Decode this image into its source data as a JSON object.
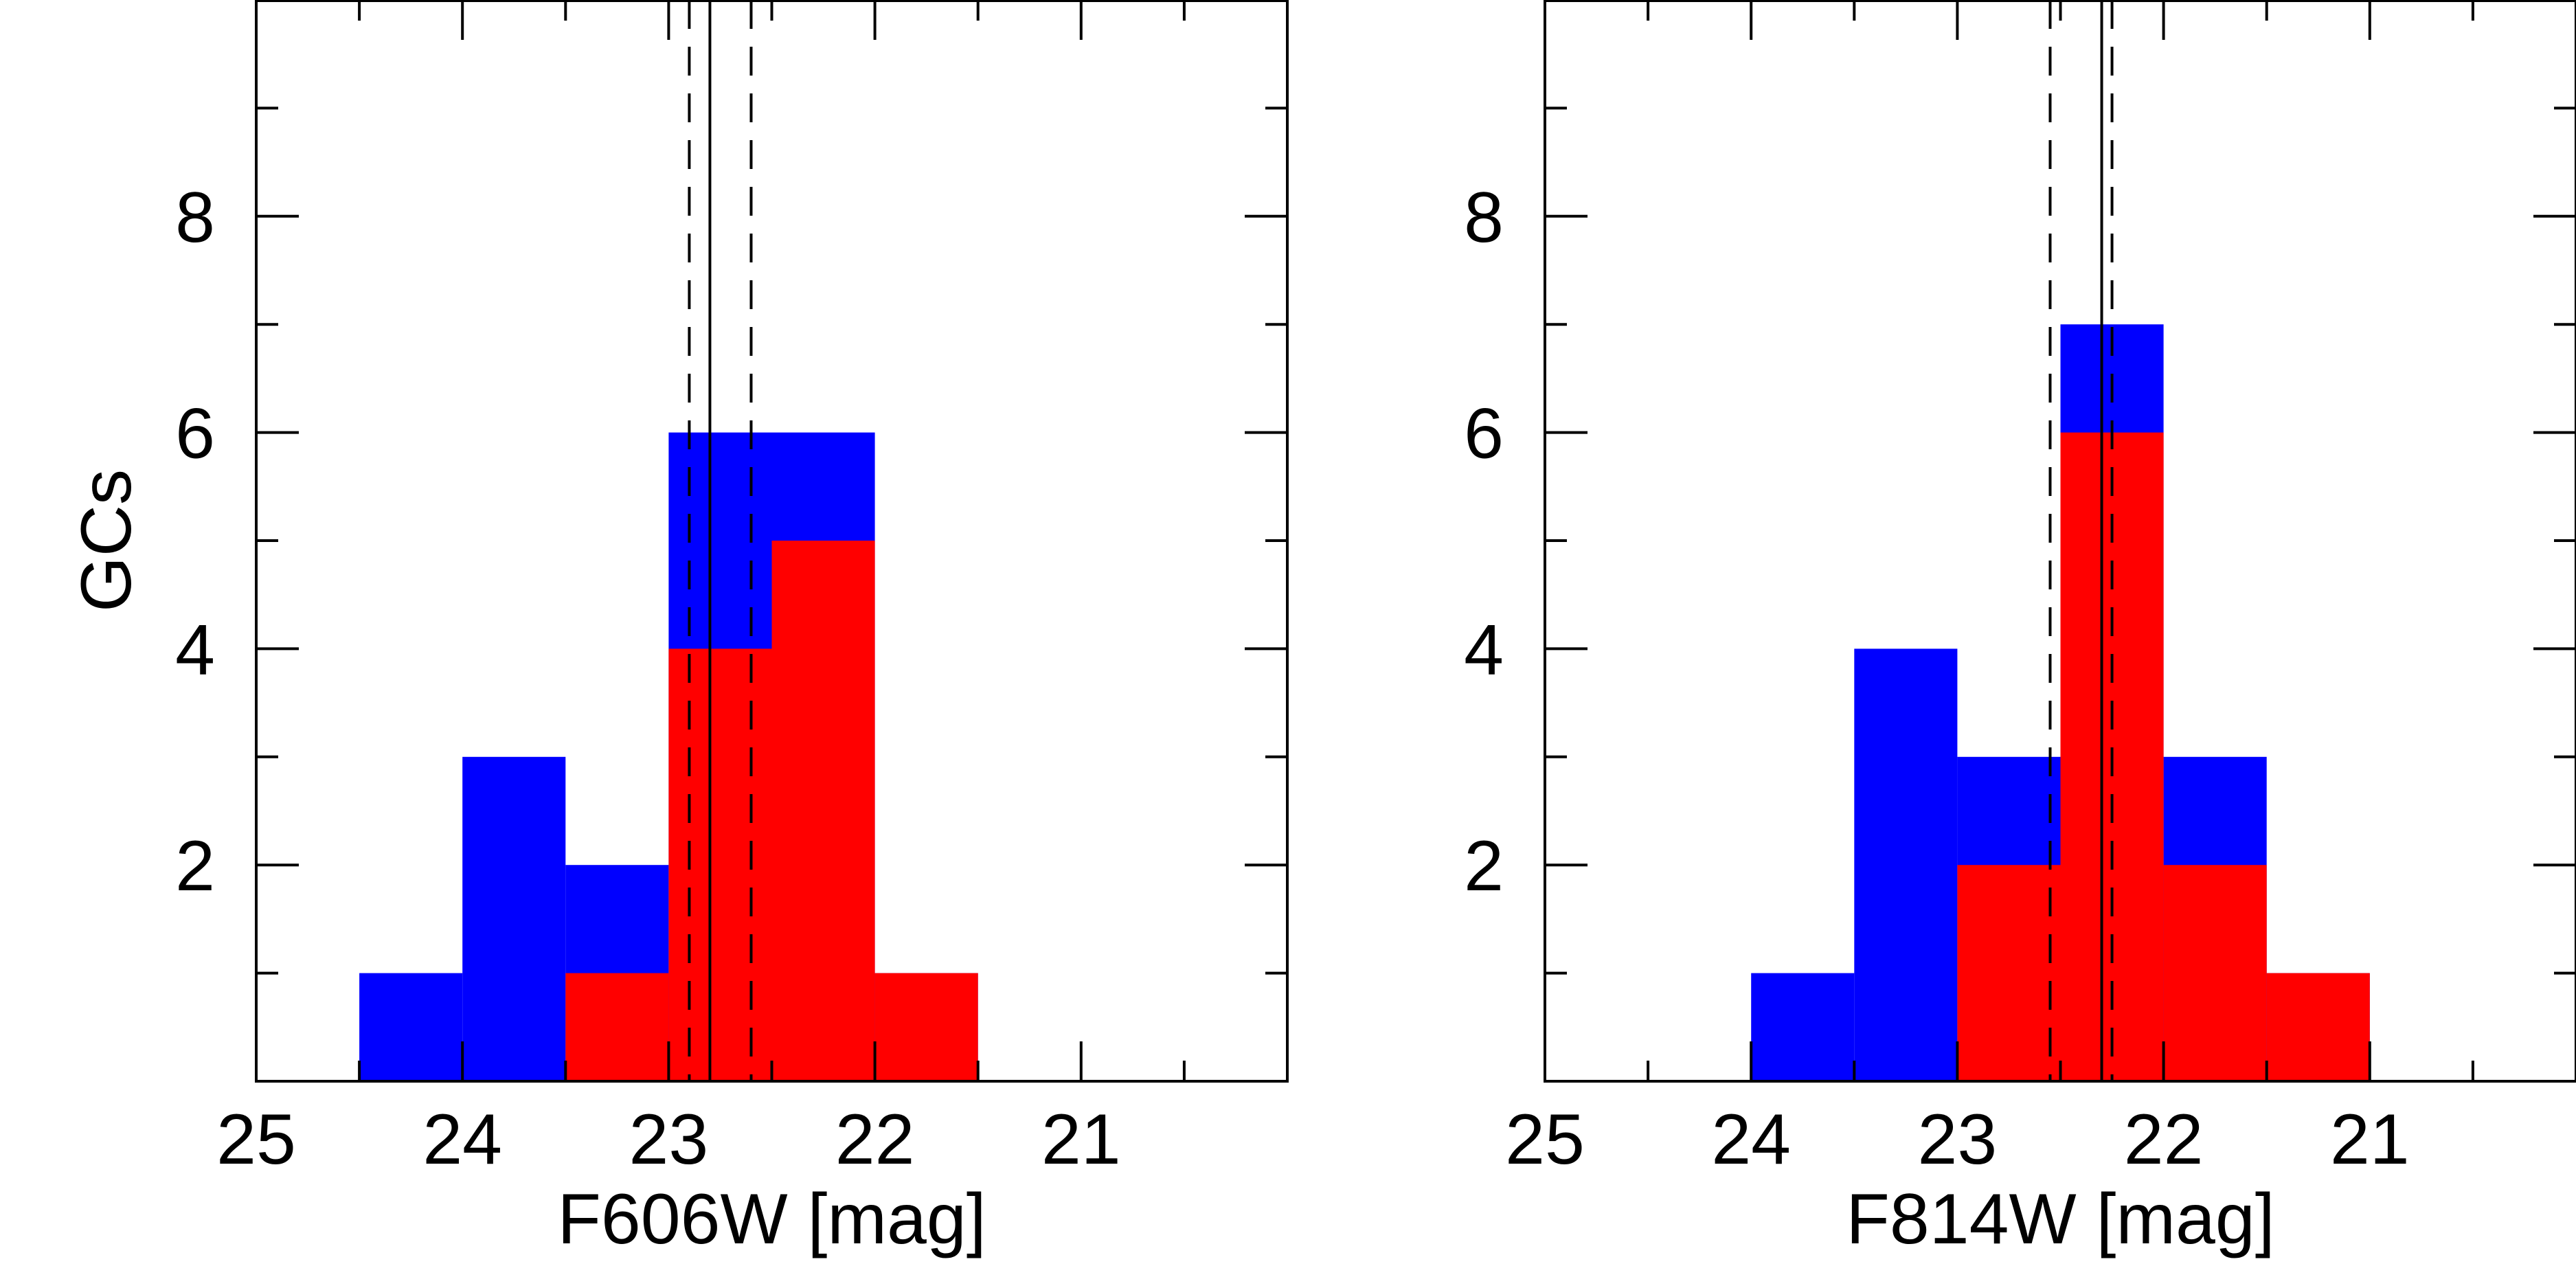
{
  "chart_data": [
    {
      "type": "bar",
      "xlabel": "F606W [mag]",
      "ylabel": "GCs",
      "xlim": [
        25,
        20
      ],
      "ylim": [
        0,
        10
      ],
      "x_ticks": [
        "25",
        "24",
        "23",
        "22",
        "21"
      ],
      "y_ticks": [
        "2",
        "4",
        "6",
        "8"
      ],
      "bin_edges": [
        24.5,
        24.0,
        23.5,
        23.0,
        22.5,
        22.0,
        21.5
      ],
      "series": [
        {
          "color": "#0000ff",
          "values": [
            1,
            3,
            2,
            6,
            6,
            1
          ]
        },
        {
          "color": "#ff0000",
          "values": [
            0,
            0,
            1,
            4,
            5,
            1
          ]
        }
      ],
      "vlines": [
        {
          "x": 22.8,
          "style": "solid"
        },
        {
          "x": 22.9,
          "style": "dashed"
        },
        {
          "x": 22.6,
          "style": "dashed"
        }
      ]
    },
    {
      "type": "bar",
      "xlabel": "F814W [mag]",
      "ylabel": "",
      "xlim": [
        25,
        20
      ],
      "ylim": [
        0,
        10
      ],
      "x_ticks": [
        "25",
        "24",
        "23",
        "22",
        "21"
      ],
      "y_ticks": [
        "2",
        "4",
        "6",
        "8"
      ],
      "bin_edges": [
        24.0,
        23.5,
        23.0,
        22.5,
        22.0,
        21.5,
        21.0
      ],
      "series": [
        {
          "color": "#0000ff",
          "values": [
            1,
            4,
            3,
            7,
            3,
            1
          ]
        },
        {
          "color": "#ff0000",
          "values": [
            0,
            0,
            2,
            6,
            2,
            1
          ]
        }
      ],
      "vlines": [
        {
          "x": 22.3,
          "style": "solid"
        },
        {
          "x": 22.55,
          "style": "dashed"
        },
        {
          "x": 22.25,
          "style": "dashed"
        }
      ]
    }
  ]
}
